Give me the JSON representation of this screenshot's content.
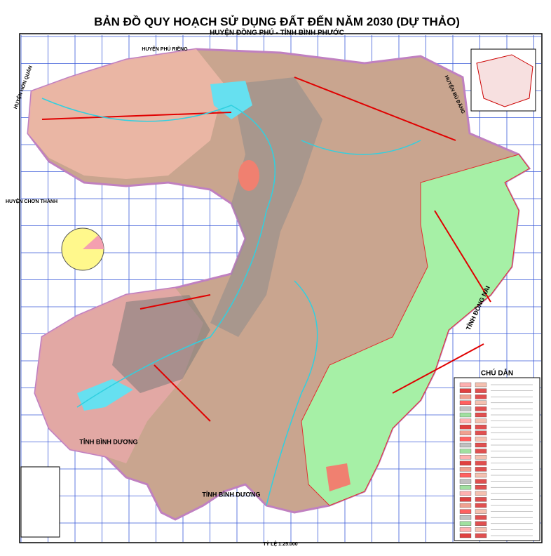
{
  "header": {
    "title": "BẢN ĐỒ QUY HOẠCH SỬ DỤNG ĐẤT ĐẾN  NĂM 2030 (DỰ THẢO)",
    "subtitle": "HUYỆN ĐỒNG PHÚ - TỈNH BÌNH PHƯỚC"
  },
  "regions": [
    "HUYỆN PHÚ RIỀNG",
    "HUYỆN HỚN QUẢN",
    "HUYỆN BÙ ĐĂNG",
    "HUYỆN CHƠN THÀNH",
    "TỈNH ĐỒNG NAI",
    "TỈNH BÌNH DƯƠNG",
    "TỈNH BÌNH DƯƠNG"
  ],
  "legend": {
    "title": "CHÚ DẪN"
  },
  "scale": "TỶ LỆ 1:25.000"
}
